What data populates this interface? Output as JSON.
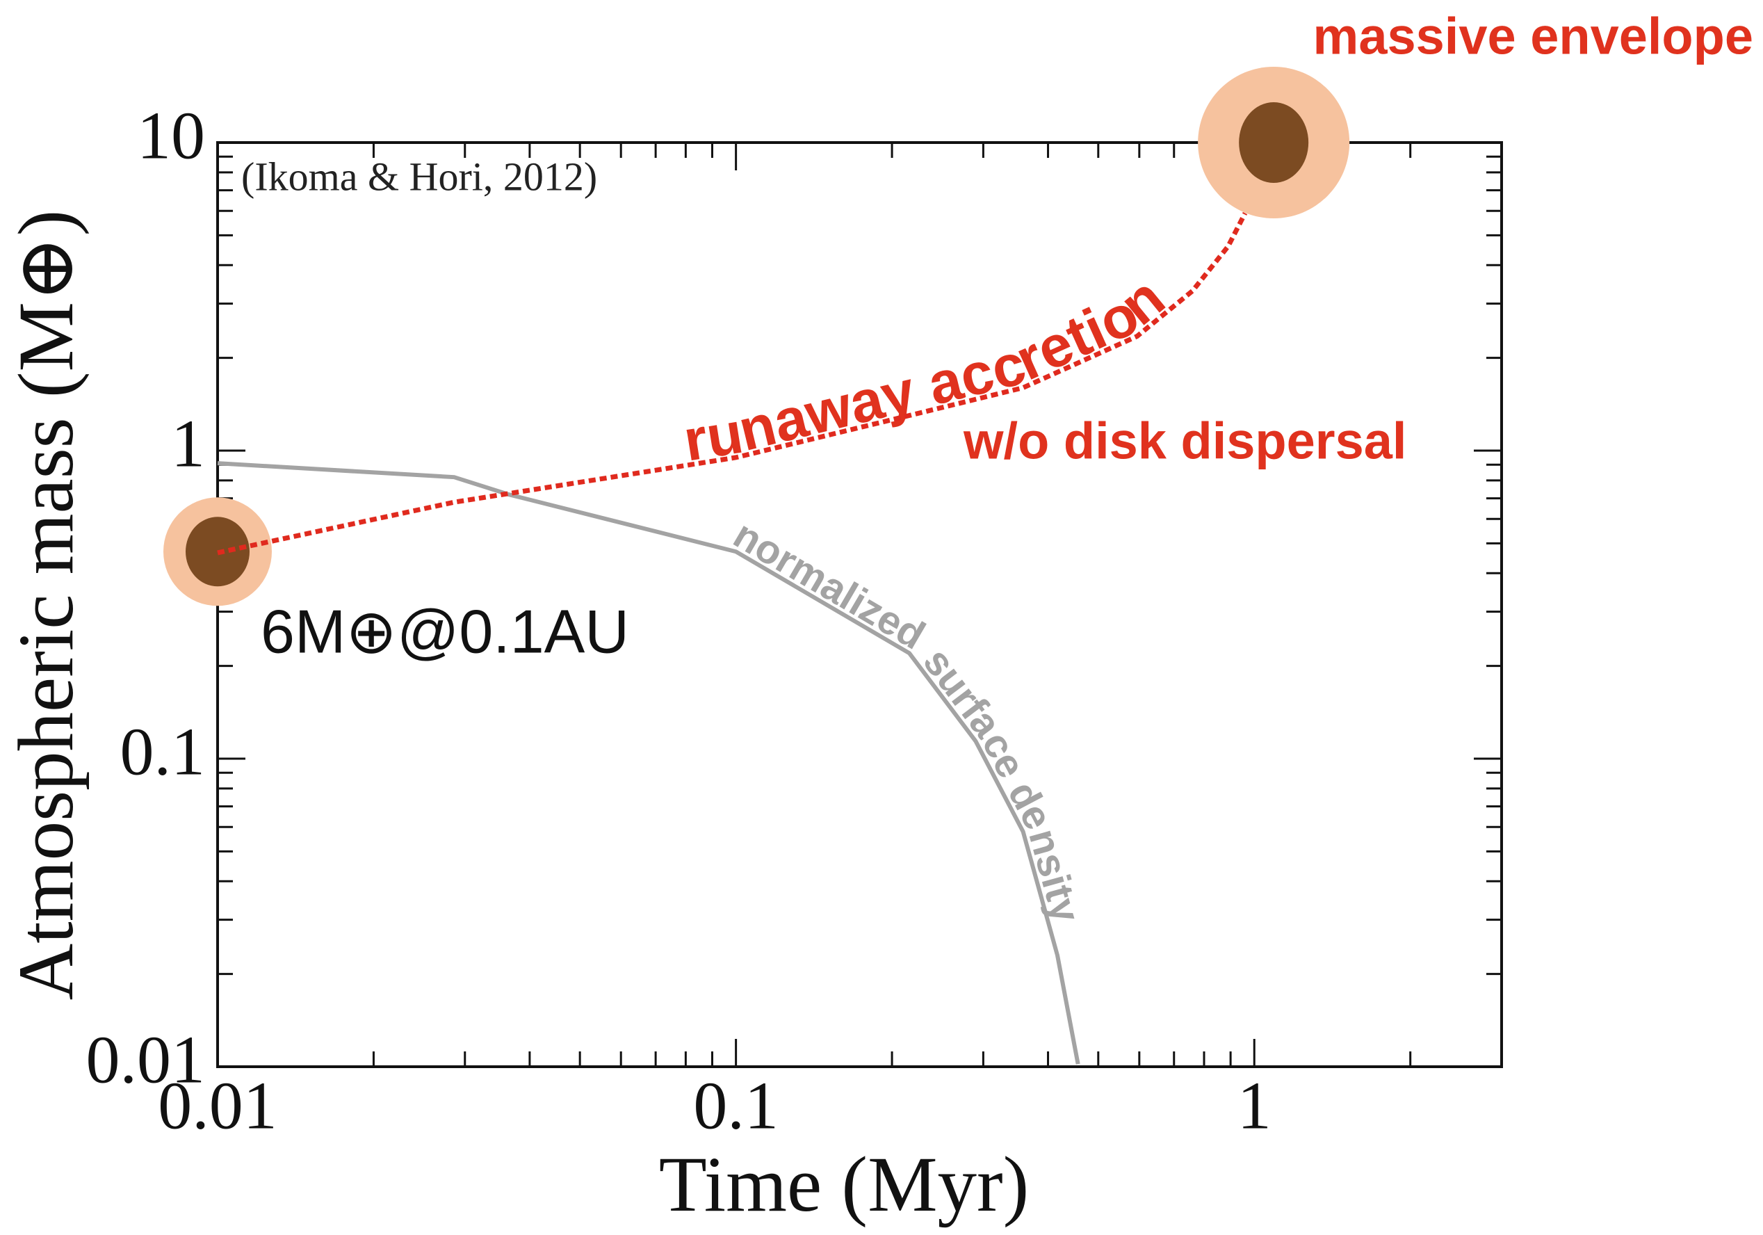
{
  "chart_data": {
    "type": "line",
    "xlabel": "Time (Myr)",
    "ylabel": "Atmospheric mass (M⊕)",
    "xscale": "log",
    "yscale": "log",
    "xlim": [
      0.01,
      3
    ],
    "ylim": [
      0.01,
      10
    ],
    "xticks": [
      0.01,
      0.1,
      1
    ],
    "yticks": [
      0.01,
      0.1,
      1,
      10
    ],
    "minor_ticks": true,
    "series": [
      {
        "name": "runaway accretion",
        "color": "#e02a1e",
        "style": "dotted",
        "x": [
          0.01,
          0.0286,
          0.1,
          0.216,
          0.358,
          0.594,
          0.76,
          0.89,
          0.96
        ],
        "values": [
          0.466,
          0.68,
          0.95,
          1.3,
          1.6,
          2.35,
          3.3,
          4.6,
          5.9
        ]
      },
      {
        "name": "normalized surface density",
        "color": "#a3a3a3",
        "style": "solid",
        "x": [
          0.01,
          0.0286,
          0.0365,
          0.1,
          0.216,
          0.29,
          0.358,
          0.417,
          0.457
        ],
        "values": [
          0.91,
          0.82,
          0.72,
          0.47,
          0.22,
          0.114,
          0.058,
          0.023,
          0.0102
        ]
      }
    ],
    "markers": {
      "x": [
        0.01,
        1.09
      ],
      "y": [
        0.47,
        10
      ],
      "outer_color": "#f6c29e",
      "inner_color": "#7c4b22"
    },
    "annotations": {
      "citation": "(Ikoma & Hori, 2012)",
      "envelope": "massive envelope",
      "dispersal": "w/o disk dispersal",
      "core": "6M⊕@0.1AU"
    }
  }
}
